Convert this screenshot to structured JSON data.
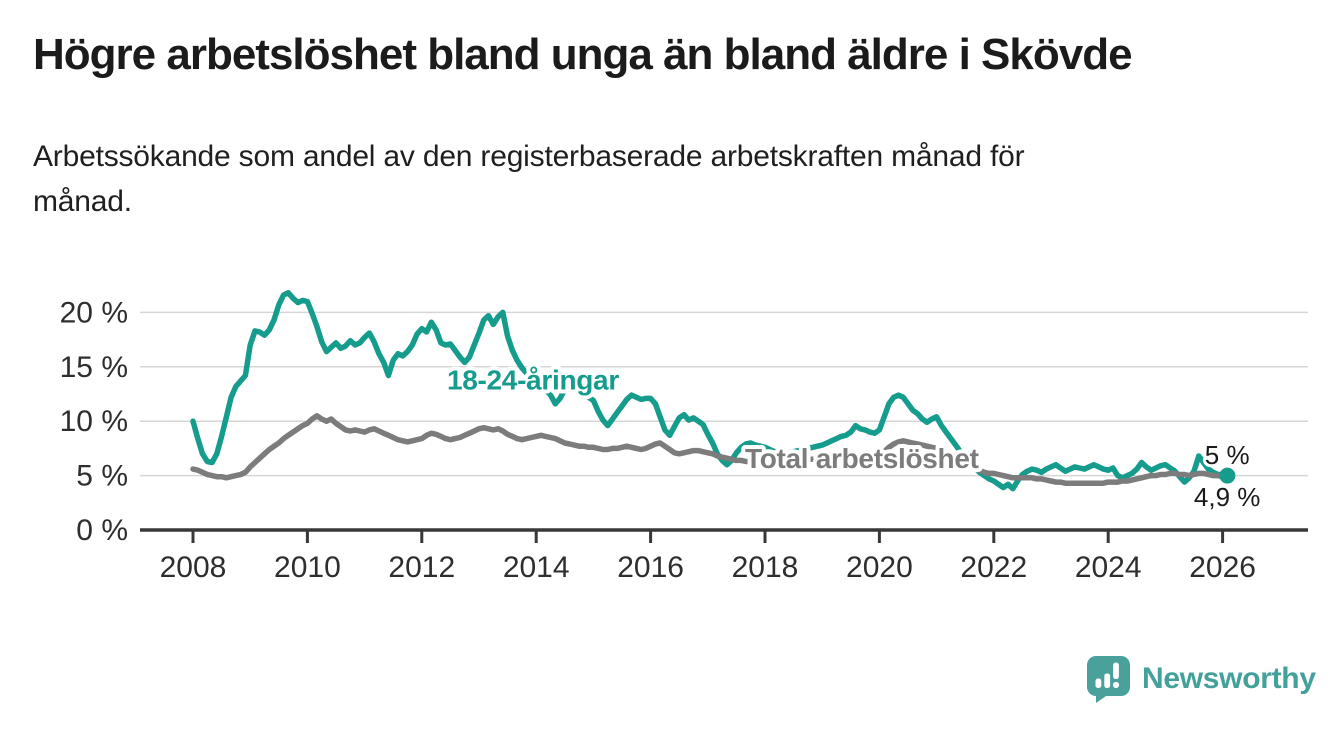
{
  "header": {
    "title": "Högre arbetslöshet bland unga än bland äldre i Skövde",
    "subtitle_line1": "Arbetssökande som andel av den registerbaserade arbetskraften månad för",
    "subtitle_line2": "månad."
  },
  "chart_data": {
    "type": "line",
    "title": "Högre arbetslöshet bland unga än bland äldre i Skövde",
    "subtitle": "Arbetssökande som andel av den registerbaserade arbetskraften månad för månad.",
    "x_unit": "monthly, decimal years",
    "xlim": [
      2007.1,
      2027.4
    ],
    "ylim": [
      0,
      22.5
    ],
    "grid": "horizontal",
    "y_ticks": [
      0,
      5,
      10,
      15,
      20
    ],
    "y_tick_labels": [
      "0 %",
      "5 %",
      "10 %",
      "15 %",
      "20 %"
    ],
    "x_ticks": [
      2008,
      2010,
      2012,
      2014,
      2016,
      2018,
      2020,
      2022,
      2024,
      2026
    ],
    "x_tick_labels": [
      "2008",
      "2010",
      "2012",
      "2014",
      "2016",
      "2018",
      "2020",
      "2022",
      "2024",
      "2026"
    ],
    "colors": {
      "youth": "#169c8d",
      "total": "#7c7c7c",
      "grid": "#d6d6d6",
      "axis": "#383838",
      "tick_label": "#2e2e2e",
      "end_label": "#1a1a1a",
      "total_label": "#7c7c7c"
    },
    "series": [
      {
        "name": "18-24-åringar",
        "color": "#169c8d",
        "start_year": 2008.0,
        "step_years": 0.0833333,
        "end_dot": true,
        "values": [
          10.0,
          8.4,
          7.0,
          6.3,
          6.2,
          7.0,
          8.6,
          10.4,
          12.2,
          13.2,
          13.7,
          14.2,
          17.0,
          18.3,
          18.2,
          17.9,
          18.4,
          19.3,
          20.7,
          21.6,
          21.8,
          21.3,
          20.9,
          21.1,
          21.0,
          19.9,
          18.7,
          17.3,
          16.4,
          16.8,
          17.2,
          16.7,
          16.9,
          17.4,
          17.0,
          17.2,
          17.7,
          18.1,
          17.3,
          16.2,
          15.4,
          14.2,
          15.6,
          16.2,
          16.0,
          16.4,
          17.0,
          18.0,
          18.5,
          18.2,
          19.1,
          18.4,
          17.2,
          17.0,
          17.1,
          16.5,
          15.9,
          15.4,
          15.9,
          17.0,
          18.1,
          19.3,
          19.7,
          18.9,
          19.6,
          20.0,
          17.8,
          16.5,
          15.6,
          14.9,
          14.4,
          14.0,
          13.6,
          13.2,
          12.9,
          12.4,
          11.6,
          12.1,
          12.9,
          13.1,
          13.3,
          13.0,
          12.6,
          12.2,
          11.9,
          10.9,
          10.1,
          9.6,
          10.2,
          10.8,
          11.4,
          12.0,
          12.4,
          12.2,
          12.0,
          12.1,
          12.1,
          11.6,
          10.4,
          9.2,
          8.7,
          9.5,
          10.3,
          10.6,
          10.1,
          10.3,
          10.0,
          9.7,
          8.8,
          8.0,
          7.0,
          6.4,
          6.0,
          6.4,
          7.1,
          7.6,
          7.9,
          8.0,
          7.8,
          7.7,
          7.6,
          7.4,
          7.2,
          7.1,
          7.0,
          7.1,
          7.2,
          7.3,
          7.4,
          7.5,
          7.6,
          7.7,
          7.8,
          8.0,
          8.2,
          8.4,
          8.6,
          8.7,
          9.0,
          9.6,
          9.3,
          9.2,
          9.0,
          8.9,
          9.2,
          10.4,
          11.6,
          12.2,
          12.4,
          12.2,
          11.6,
          11.0,
          10.7,
          10.2,
          9.9,
          10.2,
          10.4,
          9.6,
          9.0,
          8.4,
          7.8,
          7.2,
          6.6,
          6.1,
          5.7,
          5.3,
          5.0,
          4.7,
          4.5,
          4.2,
          3.9,
          4.2,
          3.8,
          4.5,
          5.1,
          5.4,
          5.6,
          5.5,
          5.3,
          5.6,
          5.8,
          6.0,
          5.7,
          5.4,
          5.6,
          5.8,
          5.7,
          5.6,
          5.8,
          6.0,
          5.8,
          5.6,
          5.5,
          5.7,
          5.0,
          4.8,
          5.0,
          5.2,
          5.6,
          6.2,
          5.8,
          5.5,
          5.7,
          5.9,
          6.0,
          5.7,
          5.4,
          4.9,
          4.4,
          4.8,
          5.4,
          6.8,
          6.2,
          5.6,
          5.3,
          5.1,
          5.1,
          5.0
        ],
        "latest_value_label": "5 %"
      },
      {
        "name": "Total arbetslöshet",
        "color": "#7c7c7c",
        "start_year": 2008.0,
        "step_years": 0.0833333,
        "end_dot": false,
        "values": [
          5.6,
          5.5,
          5.3,
          5.1,
          5.0,
          4.9,
          4.9,
          4.8,
          4.9,
          5.0,
          5.1,
          5.3,
          5.8,
          6.2,
          6.6,
          7.0,
          7.4,
          7.7,
          8.0,
          8.4,
          8.7,
          9.0,
          9.3,
          9.6,
          9.8,
          10.2,
          10.5,
          10.2,
          10.0,
          10.2,
          9.8,
          9.5,
          9.2,
          9.1,
          9.2,
          9.1,
          9.0,
          9.2,
          9.3,
          9.1,
          8.9,
          8.7,
          8.5,
          8.3,
          8.2,
          8.1,
          8.2,
          8.3,
          8.4,
          8.7,
          8.9,
          8.8,
          8.6,
          8.4,
          8.3,
          8.4,
          8.5,
          8.7,
          8.9,
          9.1,
          9.3,
          9.4,
          9.3,
          9.2,
          9.3,
          9.1,
          8.8,
          8.6,
          8.4,
          8.3,
          8.4,
          8.5,
          8.6,
          8.7,
          8.6,
          8.5,
          8.4,
          8.2,
          8.0,
          7.9,
          7.8,
          7.7,
          7.7,
          7.6,
          7.6,
          7.5,
          7.4,
          7.4,
          7.5,
          7.5,
          7.6,
          7.7,
          7.6,
          7.5,
          7.4,
          7.5,
          7.7,
          7.9,
          8.0,
          7.7,
          7.4,
          7.1,
          7.0,
          7.1,
          7.2,
          7.3,
          7.3,
          7.2,
          7.1,
          7.0,
          6.8,
          6.7,
          6.6,
          6.5,
          6.4,
          6.4,
          6.3,
          6.3,
          6.2,
          6.2,
          6.2,
          6.2,
          6.3,
          6.3,
          6.2,
          6.2,
          6.3,
          6.4,
          6.4,
          6.5,
          6.5,
          6.6,
          6.6,
          6.7,
          6.7,
          6.6,
          6.6,
          6.5,
          6.6,
          6.6,
          6.7,
          6.6,
          6.6,
          6.7,
          6.8,
          7.2,
          7.6,
          7.9,
          8.1,
          8.2,
          8.1,
          8.0,
          7.9,
          7.8,
          7.7,
          7.6,
          7.5,
          7.3,
          7.1,
          6.9,
          6.7,
          6.4,
          6.1,
          5.8,
          5.6,
          5.5,
          5.3,
          5.2,
          5.2,
          5.1,
          5.0,
          4.9,
          4.8,
          4.8,
          4.8,
          4.8,
          4.8,
          4.7,
          4.7,
          4.6,
          4.5,
          4.4,
          4.4,
          4.3,
          4.3,
          4.3,
          4.3,
          4.3,
          4.3,
          4.3,
          4.3,
          4.3,
          4.4,
          4.4,
          4.4,
          4.5,
          4.5,
          4.6,
          4.7,
          4.8,
          4.9,
          5.0,
          5.0,
          5.1,
          5.1,
          5.2,
          5.2,
          5.1,
          5.1,
          5.0,
          5.1,
          5.2,
          5.2,
          5.1,
          5.0,
          5.0,
          4.9,
          4.9
        ],
        "latest_value_label": "4,9 %"
      }
    ],
    "series_labels": [
      {
        "text": "18-24-åringar",
        "x_year": 2012.44,
        "y_pct": 12.9,
        "color": "#169c8d"
      },
      {
        "text": "Total arbetslöshet",
        "x_year": 2017.65,
        "y_pct": 5.7,
        "color": "#7c7c7c"
      }
    ],
    "end_labels": [
      {
        "text": "5 %",
        "x_year": 2026.08,
        "y_pct": 6.05
      },
      {
        "text": "4,9 %",
        "x_year": 2026.08,
        "y_pct": 2.2
      }
    ]
  },
  "footer": {
    "brand": "Newsworthy",
    "brand_color": "#44a09b",
    "logo_icon": "bar-chart-speech-bubble"
  }
}
